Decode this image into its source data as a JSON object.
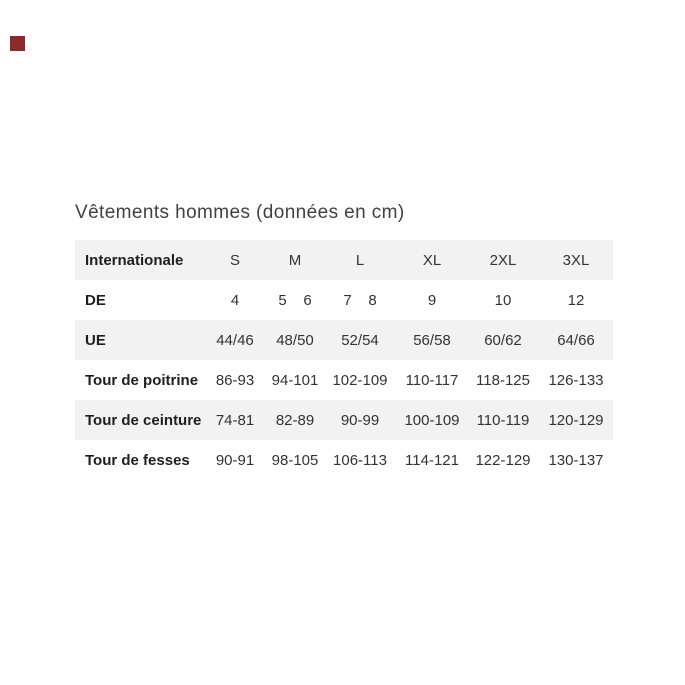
{
  "title": "Vêtements hommes (données en cm)",
  "colors": {
    "stripe_row": "#f2f2f2",
    "label_text": "#1f1f1f",
    "value_text": "#333333",
    "title_text": "#414141",
    "artifact_red": "#8b2a2a",
    "page_background": "#ffffff"
  },
  "chart_data": {
    "type": "table",
    "title": "Vêtements hommes (données en cm)",
    "unit": "cm",
    "rows": [
      {
        "label": "Internationale",
        "values": [
          "S",
          "M",
          "L",
          "XL",
          "2XL",
          "3XL"
        ]
      },
      {
        "label": "DE",
        "values": [
          "4",
          "5    6",
          "7    8",
          "9",
          "10",
          "12"
        ]
      },
      {
        "label": "UE",
        "values": [
          "44/46",
          "48/50",
          "52/54",
          "56/58",
          "60/62",
          "64/66"
        ]
      },
      {
        "label": "Tour de poitrine",
        "values": [
          "86-93",
          "94-101",
          "102-109",
          "110-117",
          "118-125",
          "126-133"
        ]
      },
      {
        "label": "Tour de ceinture",
        "values": [
          "74-81",
          "82-89",
          "90-99",
          "100-109",
          "110-119",
          "120-129"
        ]
      },
      {
        "label": "Tour de fesses",
        "values": [
          "90-91",
          "98-105",
          "106-113",
          "114-121",
          "122-129",
          "130-137"
        ]
      }
    ]
  }
}
